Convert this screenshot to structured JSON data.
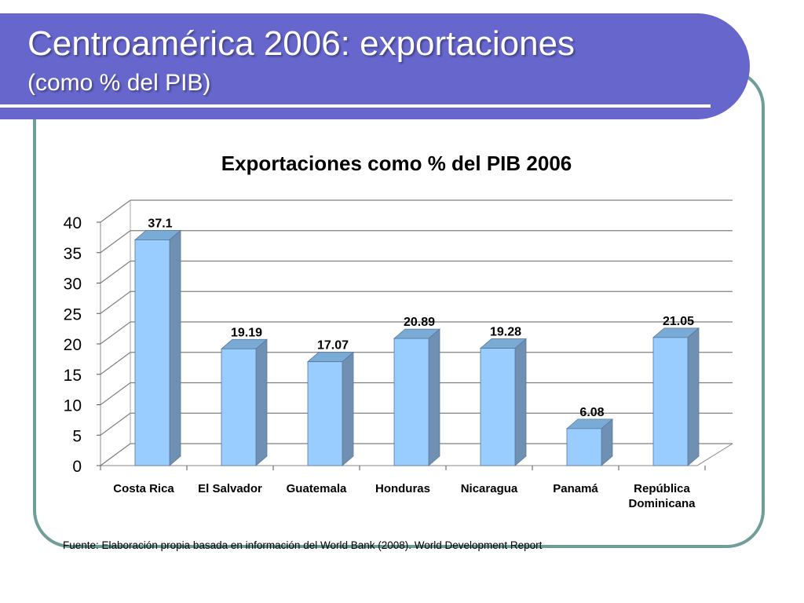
{
  "slide": {
    "title": "Centroamérica 2006: exportaciones",
    "subtitle": "(como % del PIB)",
    "source": "Fuente:  Elaboración propia basada en información del World Bank (2008). World Development Report"
  },
  "colors": {
    "header": "#6666cc",
    "frame": "#6f9e9a",
    "bar_front": "#99ccff",
    "bar_side": "#6f8fb3",
    "bar_top": "#7aaad6"
  },
  "chart_data": {
    "type": "bar",
    "title": "Exportaciones como % del PIB 2006",
    "xlabel": "",
    "ylabel": "",
    "categories": [
      "Costa Rica",
      "El Salvador",
      "Guatemala",
      "Honduras",
      "Nicaragua",
      "Panamá",
      "República Dominicana"
    ],
    "category_lines": [
      [
        "Costa Rica"
      ],
      [
        "El Salvador"
      ],
      [
        "Guatemala"
      ],
      [
        "Honduras"
      ],
      [
        "Nicaragua"
      ],
      [
        "Panamá"
      ],
      [
        "República",
        "Dominicana"
      ]
    ],
    "values": [
      37.1,
      19.19,
      17.07,
      20.89,
      19.28,
      6.08,
      21.05
    ],
    "data_labels": [
      "37.1",
      "19.19",
      "17.07",
      "20.89",
      "19.28",
      "6.08",
      "21.05"
    ],
    "ylim": [
      0,
      40
    ],
    "yticks": [
      0,
      5,
      10,
      15,
      20,
      25,
      30,
      35,
      40
    ],
    "grid": true,
    "legend": "none"
  }
}
